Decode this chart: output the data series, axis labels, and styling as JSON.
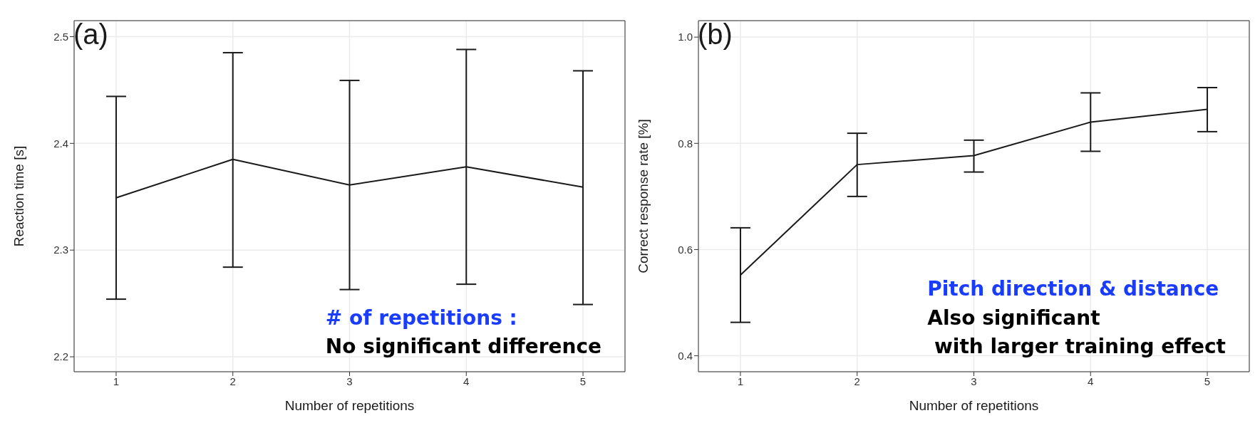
{
  "chart_data": [
    {
      "type": "line",
      "xlabel": "Number of repetitions",
      "ylabel": "Reaction time [s]",
      "x": [
        1,
        2,
        3,
        4,
        5
      ],
      "xlim": [
        0.64,
        5.36
      ],
      "xticks": [
        1,
        2,
        3,
        4,
        5
      ],
      "ylim": [
        2.186,
        2.515
      ],
      "yticks": [
        2.2,
        2.3,
        2.4,
        2.5
      ],
      "grid": true,
      "marker": "none",
      "line_style": "solid",
      "legend": false,
      "series": [
        {
          "color": "#1a1a1a",
          "values": [
            2.349,
            2.385,
            2.361,
            2.378,
            2.359
          ],
          "errors": [
            [
              2.254,
              2.444
            ],
            [
              2.284,
              2.485
            ],
            [
              2.263,
              2.459
            ],
            [
              2.268,
              2.488
            ],
            [
              2.249,
              2.468
            ]
          ]
        }
      ],
      "annotations": [
        "(a)",
        "# of repetitions :",
        "No significant difference"
      ]
    },
    {
      "type": "line",
      "xlabel": "Number of repetitions",
      "ylabel": "Correct response rate [%]",
      "x": [
        1,
        2,
        3,
        4,
        5
      ],
      "xlim": [
        0.64,
        5.36
      ],
      "xticks": [
        1,
        2,
        3,
        4,
        5
      ],
      "ylim": [
        0.37,
        1.031
      ],
      "yticks": [
        0.4,
        0.6,
        0.8,
        {
          "value": 1.0,
          "label": "1.0"
        }
      ],
      "grid": true,
      "marker": "none",
      "line_style": "solid",
      "legend": false,
      "series": [
        {
          "color": "#1a1a1a",
          "values": [
            0.552,
            0.76,
            0.777,
            0.84,
            0.864
          ],
          "errors": [
            [
              0.463,
              0.641
            ],
            [
              0.7,
              0.819
            ],
            [
              0.746,
              0.806
            ],
            [
              0.785,
              0.895
            ],
            [
              0.822,
              0.905
            ]
          ]
        }
      ],
      "annotations": [
        "(b)",
        "Pitch direction & distance",
        "Also significant\n with larger training effect"
      ]
    }
  ]
}
